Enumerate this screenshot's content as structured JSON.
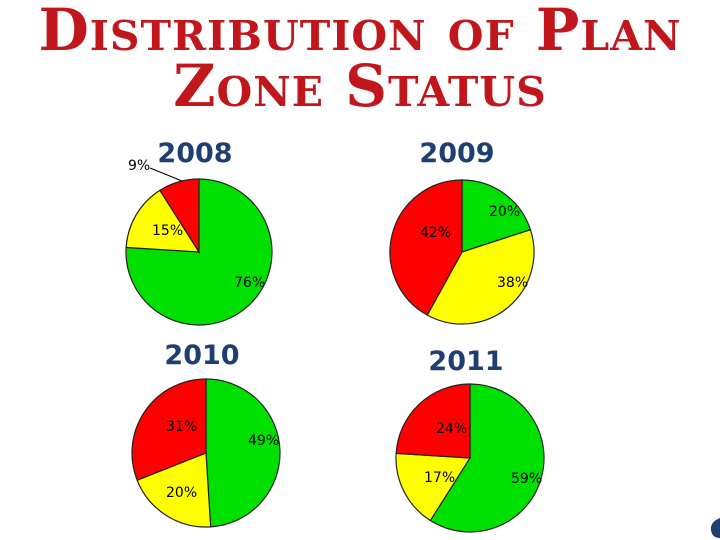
{
  "page": {
    "title_line1": "Distribution of Plan",
    "title_line2": "Zone Status"
  },
  "colors": {
    "green": "#00e000",
    "yellow": "#ffff00",
    "red": "#ff0000",
    "title": "#c0161c",
    "year": "#1f3f73"
  },
  "chart_data": [
    {
      "type": "pie",
      "title": "2008",
      "slices": [
        {
          "label": "76%",
          "value": 76,
          "color": "green"
        },
        {
          "label": "15%",
          "value": 15,
          "color": "yellow"
        },
        {
          "label": "9%",
          "value": 9,
          "color": "red"
        }
      ]
    },
    {
      "type": "pie",
      "title": "2009",
      "slices": [
        {
          "label": "20%",
          "value": 20,
          "color": "green"
        },
        {
          "label": "38%",
          "value": 38,
          "color": "yellow"
        },
        {
          "label": "42%",
          "value": 42,
          "color": "red"
        }
      ]
    },
    {
      "type": "pie",
      "title": "2010",
      "slices": [
        {
          "label": "49%",
          "value": 49,
          "color": "green"
        },
        {
          "label": "20%",
          "value": 20,
          "color": "yellow"
        },
        {
          "label": "31%",
          "value": 31,
          "color": "red"
        }
      ]
    },
    {
      "type": "pie",
      "title": "2011",
      "slices": [
        {
          "label": "59%",
          "value": 59,
          "color": "green"
        },
        {
          "label": "17%",
          "value": 17,
          "color": "yellow"
        },
        {
          "label": "24%",
          "value": 24,
          "color": "red"
        }
      ]
    }
  ]
}
